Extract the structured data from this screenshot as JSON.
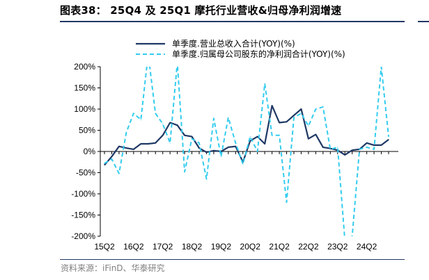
{
  "figure": {
    "title": "图表38： 25Q4 及 25Q1 摩托行业营收&归母净利润增速",
    "source": "资料来源：iFinD、华泰研究"
  },
  "chart_data": {
    "type": "line",
    "ylim": [
      -2.0,
      2.0
    ],
    "y_ticks": [
      2.0,
      1.5,
      1.0,
      0.5,
      0.0,
      -0.5,
      -1.0,
      -1.5,
      -2.0
    ],
    "y_tick_labels": [
      "200%",
      "150%",
      "100%",
      "50%",
      "0%",
      "-50%",
      "-100%",
      "-150%",
      "-200%"
    ],
    "x_tick_labels": [
      "15Q2",
      "16Q2",
      "17Q2",
      "18Q2",
      "19Q2",
      "20Q2",
      "21Q2",
      "22Q2",
      "23Q2",
      "24Q2"
    ],
    "x_tick_index": [
      0,
      4,
      8,
      12,
      16,
      20,
      24,
      28,
      32,
      36
    ],
    "legend_position": "top",
    "grid": false,
    "series": [
      {
        "name": "单季度.营业总收入合计(YOY)(%)",
        "color": "#1f3864",
        "style": "solid",
        "values": [
          -0.32,
          -0.12,
          0.12,
          0.08,
          0.05,
          0.18,
          0.18,
          0.2,
          0.38,
          0.68,
          0.62,
          0.38,
          0.35,
          0.08,
          -0.02,
          0.02,
          0.0,
          0.1,
          0.12,
          -0.25,
          0.25,
          0.35,
          0.18,
          1.08,
          0.68,
          0.7,
          0.85,
          1.0,
          0.3,
          0.4,
          0.1,
          0.07,
          0.03,
          -0.08,
          0.03,
          0.05,
          0.2,
          0.15,
          0.15,
          0.28
        ]
      },
      {
        "name": "单季度.归属母公司股东的净利润合计(YOY)(%)",
        "color": "#33ccee",
        "style": "dashed",
        "values": [
          -0.28,
          -0.18,
          -0.52,
          0.45,
          0.9,
          0.75,
          2.3,
          0.9,
          0.65,
          0.2,
          2.1,
          -0.48,
          0.3,
          0.2,
          -0.65,
          0.78,
          -0.12,
          0.8,
          0.2,
          -0.3,
          0.35,
          0.0,
          1.6,
          0.38,
          0.38,
          -1.2,
          0.8,
          0.9,
          0.6,
          1.0,
          1.05,
          0.05,
          0.1,
          -2.1,
          -2.0,
          0.05,
          0.1,
          0.05,
          2.0,
          0.35
        ]
      }
    ]
  }
}
